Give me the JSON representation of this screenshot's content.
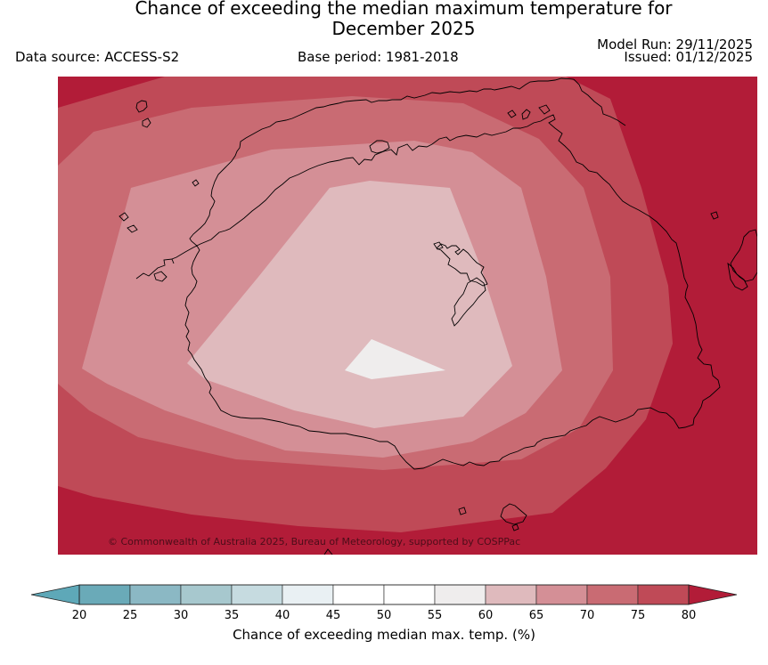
{
  "header": {
    "title_line1": "Chance of exceeding the median maximum temperature for",
    "title_line2": "December 2025",
    "data_source": "Data source: ACCESS-S2",
    "base_period": "Base period: 1981-2018",
    "model_run": "Model Run: 29/11/2025",
    "issued": "Issued: 01/12/2025"
  },
  "map": {
    "copyright": "© Commonwealth of Australia 2025, Bureau of Meteorology, supported by COSPPac"
  },
  "colors": {
    "c_below20": "#5ea8b8",
    "c_20_25": "#6aaab8",
    "c_25_30": "#8bb8c4",
    "c_30_35": "#a7c8ce",
    "c_35_40": "#c6dbe0",
    "c_40_45": "#e9f0f3",
    "c_45_50": "#ffffff",
    "c_50_55": "#ffffff",
    "c_55_60": "#efeded",
    "c_60_65": "#dfbabd",
    "c_65_70": "#d48f96",
    "c_70_75": "#c96b73",
    "c_75_80": "#bf4a57",
    "c_above80": "#b21c38"
  },
  "legend": {
    "ticks": [
      "20",
      "25",
      "30",
      "35",
      "40",
      "45",
      "50",
      "55",
      "60",
      "65",
      "70",
      "75",
      "80"
    ],
    "label": "Chance of exceeding median max. temp. (%)"
  }
}
